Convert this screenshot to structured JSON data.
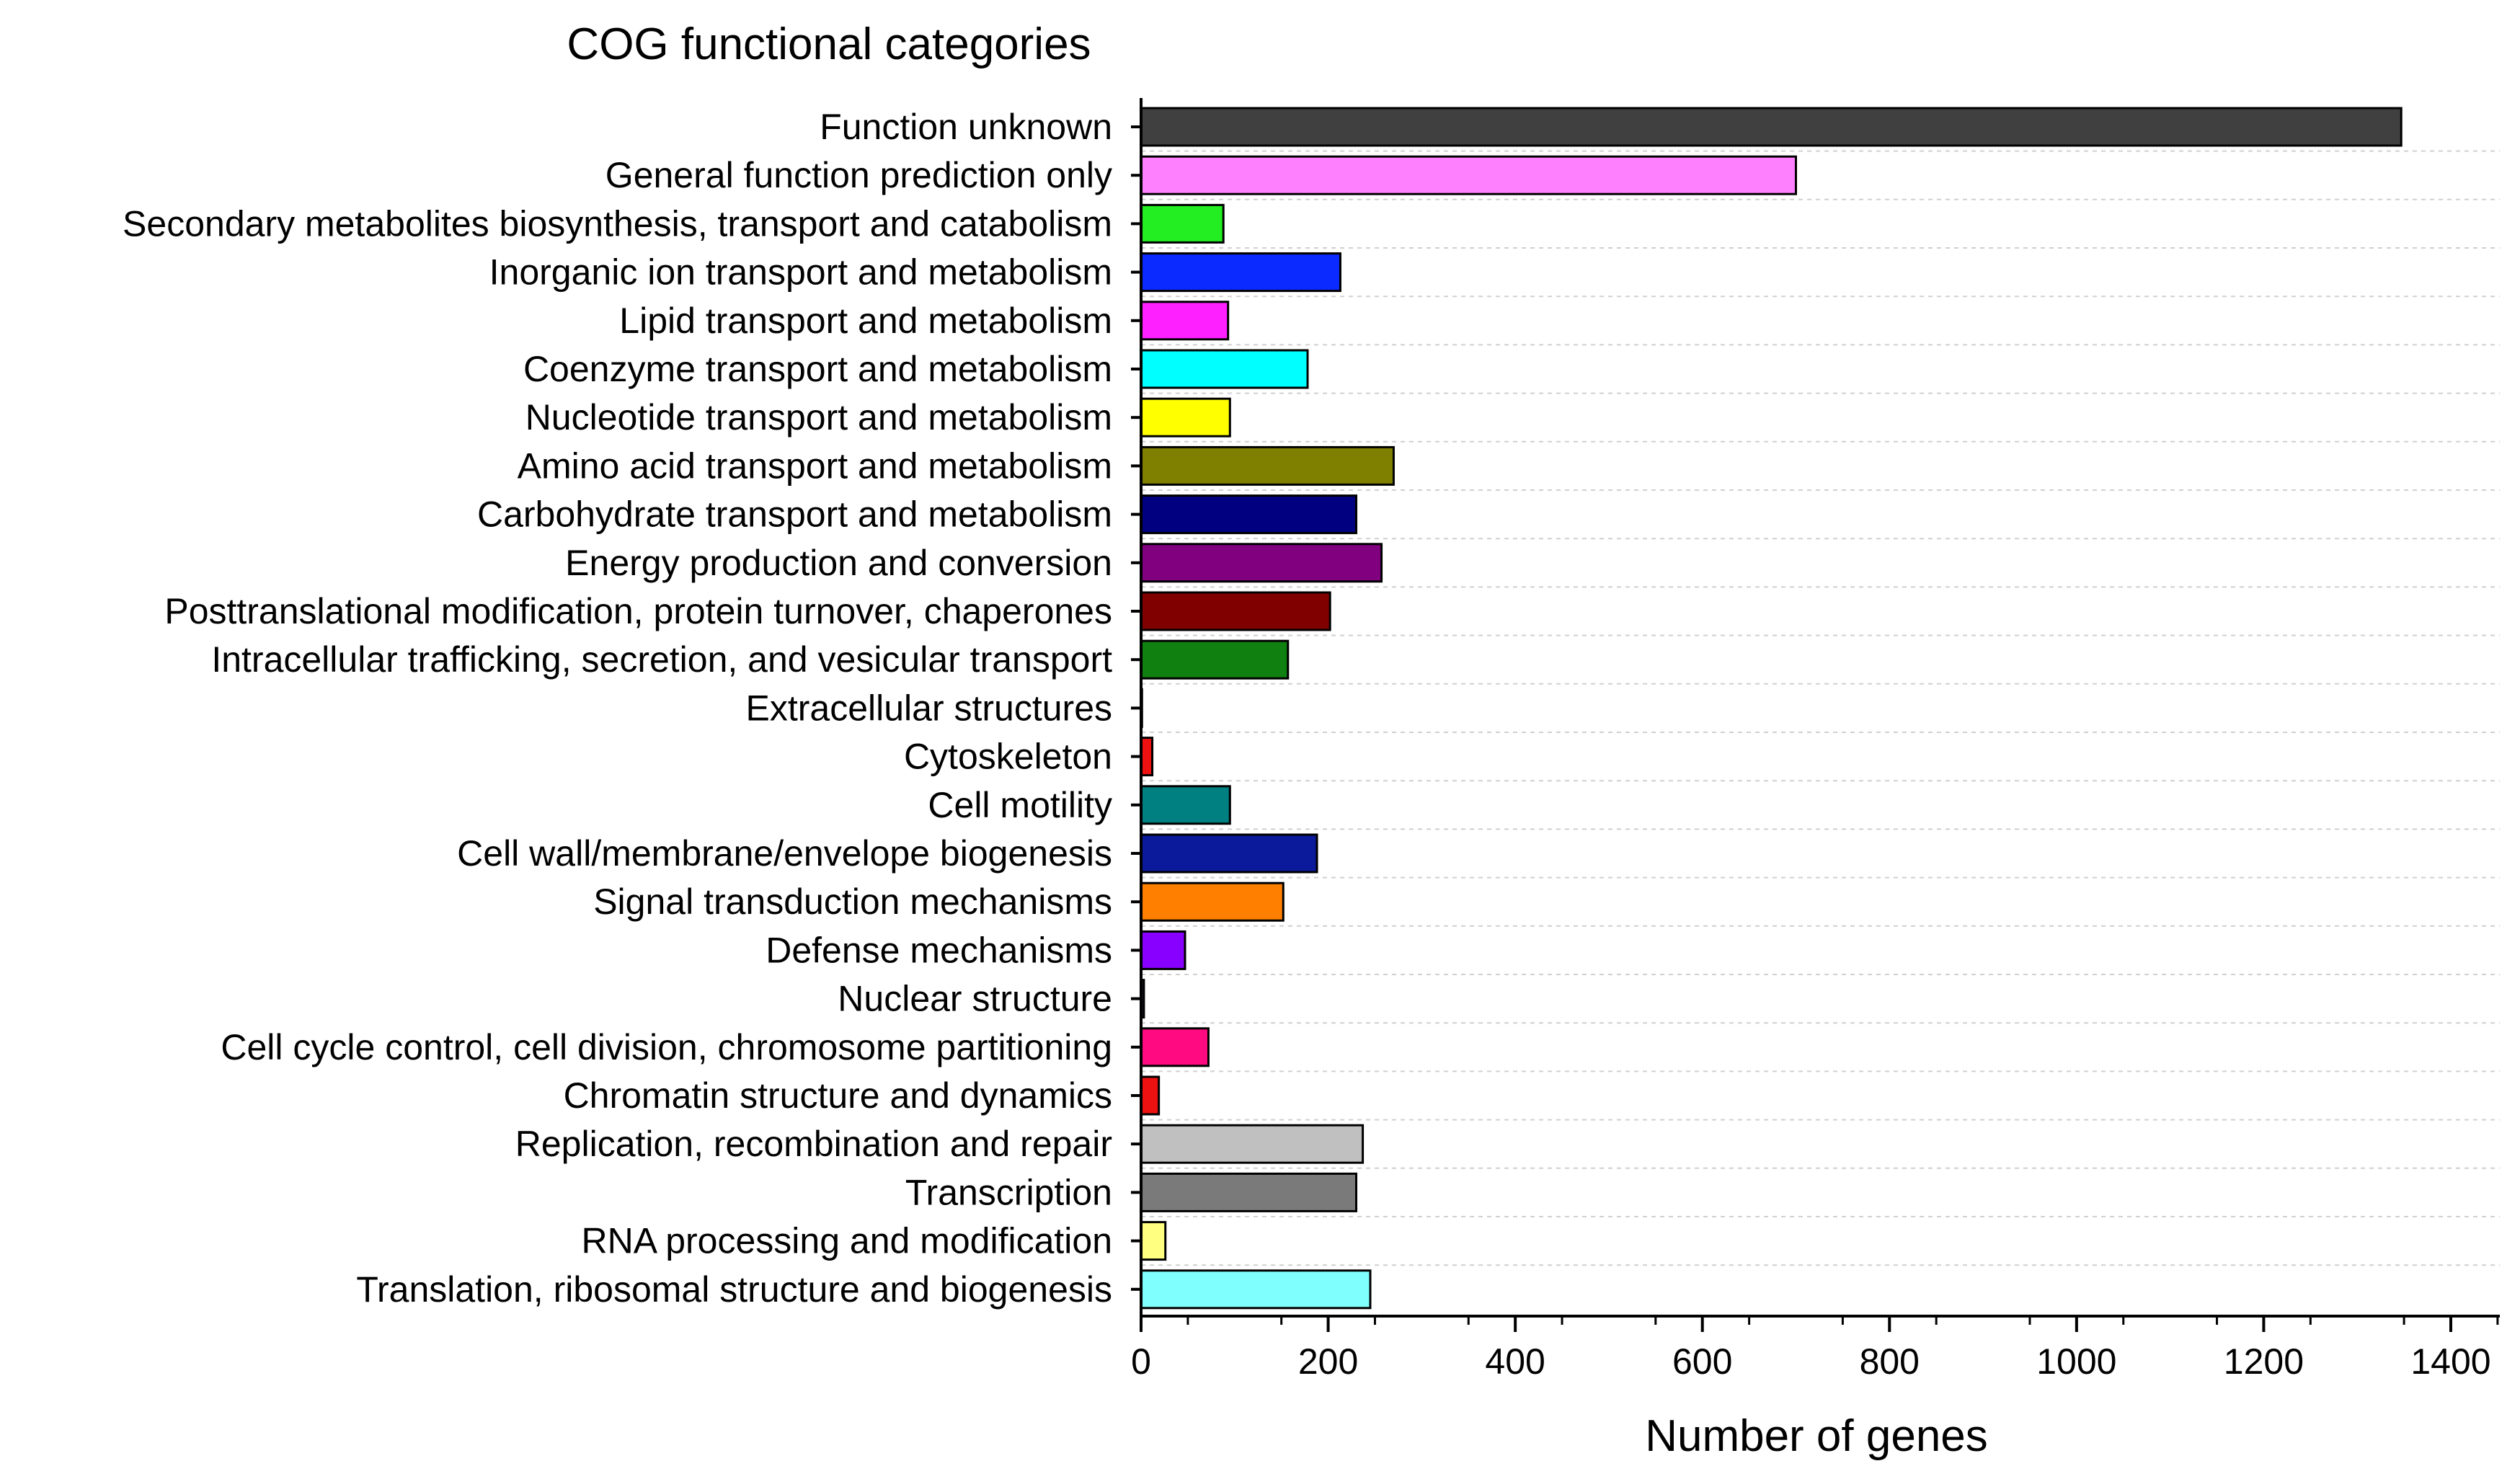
{
  "chart_data": {
    "type": "bar",
    "orientation": "horizontal",
    "title": "COG functional categories",
    "xlabel": "Number of genes",
    "ylabel": "",
    "xlim": [
      0,
      1400
    ],
    "xticks": [
      "0",
      "200",
      "400",
      "600",
      "800",
      "1000",
      "1200",
      "1400"
    ],
    "grid": "horizontal dashed",
    "categories": [
      "Function unknown",
      "General function prediction only",
      "Secondary metabolites biosynthesis, transport and catabolism",
      "Inorganic ion transport and metabolism",
      "Lipid transport and metabolism",
      "Coenzyme transport and metabolism",
      "Nucleotide transport and metabolism",
      "Amino acid transport and metabolism",
      "Carbohydrate transport and metabolism",
      "Energy production and conversion",
      "Posttranslational modification, protein turnover, chaperones",
      "Intracellular trafficking, secretion, and vesicular transport",
      "Extracellular structures",
      "Cytoskeleton",
      "Cell motility",
      "Cell wall/membrane/envelope biogenesis",
      "Signal transduction mechanisms",
      "Defense mechanisms",
      "Nuclear structure",
      "Cell cycle control, cell division, chromosome partitioning",
      "Chromatin structure and dynamics",
      "Replication, recombination and repair",
      "Transcription",
      "RNA processing and modification",
      "Translation, ribosomal structure and biogenesis"
    ],
    "values": [
      1347,
      700,
      88,
      213,
      93,
      178,
      95,
      270,
      230,
      257,
      202,
      157,
      1,
      12,
      95,
      188,
      152,
      47,
      3,
      72,
      19,
      237,
      230,
      26,
      245
    ],
    "colors": [
      "#404040",
      "#ff80ff",
      "#22ee22",
      "#0a2aff",
      "#ff20ff",
      "#00ffff",
      "#ffff00",
      "#808000",
      "#000080",
      "#800080",
      "#800000",
      "#108010",
      "#ffffff",
      "#ee1111",
      "#008080",
      "#0a1a9a",
      "#ff8000",
      "#8800ff",
      "#303050",
      "#ff0a80",
      "#ee1111",
      "#c0c0c0",
      "#7a7a7a",
      "#ffff80",
      "#80ffff"
    ]
  }
}
